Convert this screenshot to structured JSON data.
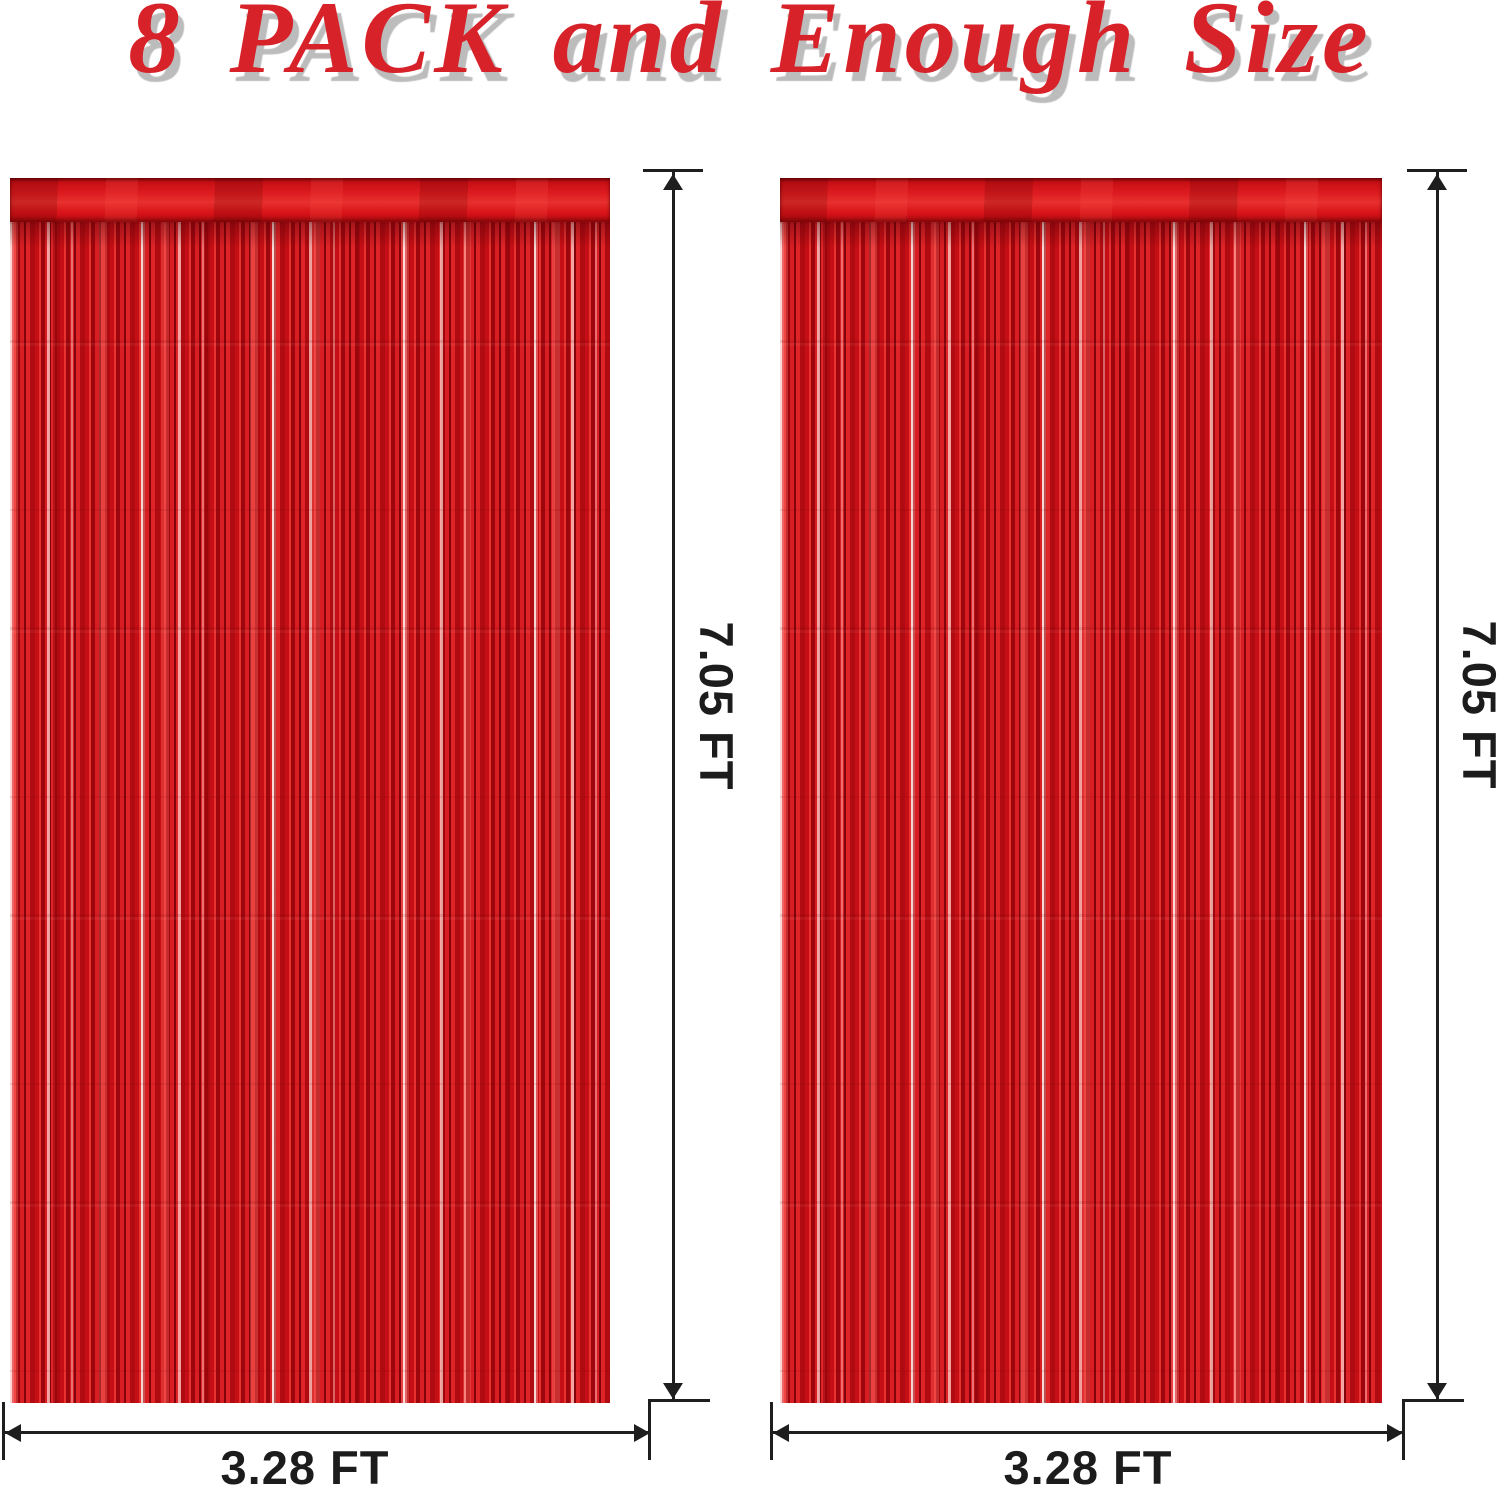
{
  "title": {
    "text": "8 PACK and Enough Size"
  },
  "colors": {
    "title_red": "#d7222a",
    "title_shadow": "#bcbcbc",
    "foil_red": "#c8101a",
    "foil_highlight": "#ffd0ca",
    "foil_shadow": "#82030a",
    "dimension_line": "#1e1e1e"
  },
  "panels": [
    {
      "name": "left-curtain",
      "height_label": "7.05 FT",
      "width_label": "3.28 FT"
    },
    {
      "name": "right-curtain",
      "height_label": "7.05 FT",
      "width_label": "3.28 FT"
    }
  ]
}
